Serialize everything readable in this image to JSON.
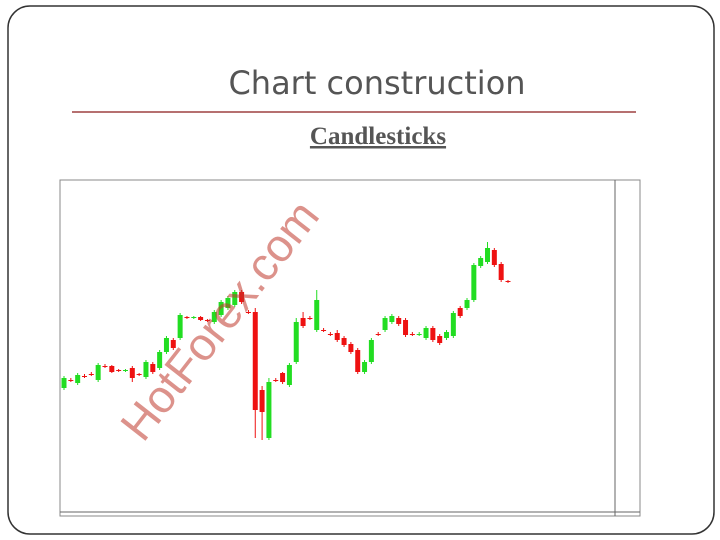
{
  "chart_data": {
    "type": "candlestick",
    "title": "Chart construction",
    "subtitle": "Candlesticks",
    "annotation": "HotForex.com",
    "up_color": "#22dd22",
    "down_color": "#ee1111",
    "ylim": [
      0,
      327
    ],
    "open": [
      124,
      132,
      129,
      136,
      138,
      132,
      146,
      146,
      142,
      141,
      144,
      138,
      135,
      148,
      144,
      160,
      172,
      174,
      195,
      194,
      195,
      192,
      190,
      197,
      204,
      207,
      220,
      200,
      200,
      122,
      74,
      132,
      139,
      127,
      150,
      194,
      194,
      182,
      182,
      178,
      179,
      174,
      168,
      162,
      140,
      150,
      178,
      182,
      190,
      194,
      192,
      178,
      177,
      174,
      184,
      176,
      174,
      176,
      204,
      204,
      212,
      246,
      250,
      262,
      248,
      231
    ],
    "high": [
      136,
      134,
      139,
      138,
      140,
      149,
      148,
      147,
      143,
      143,
      146,
      139,
      152,
      150,
      162,
      176,
      174,
      199,
      196,
      196,
      196,
      193,
      202,
      212,
      216,
      222,
      222,
      202,
      204,
      126,
      134,
      134,
      140,
      149,
      194,
      200,
      196,
      222,
      184,
      180,
      182,
      176,
      170,
      164,
      152,
      174,
      180,
      196,
      198,
      196,
      194,
      180,
      180,
      186,
      186,
      178,
      182,
      201,
      206,
      214,
      249,
      256,
      270,
      264,
      250,
      232
    ],
    "low": [
      122,
      130,
      127,
      134,
      136,
      130,
      144,
      139,
      140,
      140,
      130,
      136,
      133,
      138,
      142,
      158,
      162,
      172,
      193,
      193,
      191,
      190,
      188,
      195,
      202,
      205,
      208,
      198,
      74,
      72,
      72,
      130,
      128,
      125,
      148,
      184,
      192,
      180,
      180,
      176,
      170,
      165,
      158,
      138,
      138,
      148,
      176,
      180,
      188,
      186,
      175,
      176,
      176,
      172,
      170,
      167,
      172,
      174,
      194,
      202,
      210,
      244,
      248,
      245,
      230,
      229
    ],
    "close": [
      134,
      131,
      137,
      135,
      137,
      147,
      145,
      140,
      141,
      142,
      134,
      137,
      150,
      140,
      160,
      174,
      164,
      197,
      194,
      195,
      192,
      191,
      200,
      210,
      214,
      220,
      210,
      199,
      102,
      100,
      130,
      131,
      130,
      147,
      190,
      186,
      193,
      212,
      181,
      177,
      172,
      167,
      160,
      140,
      150,
      172,
      177,
      194,
      196,
      188,
      177,
      177,
      178,
      184,
      172,
      169,
      180,
      199,
      196,
      212,
      247,
      254,
      264,
      247,
      232,
      230
    ]
  }
}
